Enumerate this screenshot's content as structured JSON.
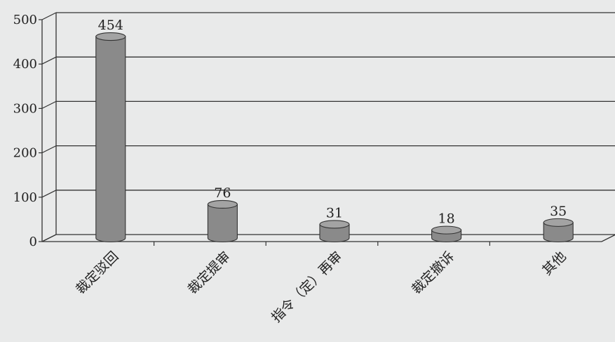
{
  "chart_data": {
    "type": "bar",
    "categories": [
      "裁定驳回",
      "裁定提审",
      "指令（定）再审",
      "裁定撤诉",
      "其他"
    ],
    "values": [
      454,
      76,
      31,
      18,
      35
    ],
    "yticks": [
      0,
      100,
      200,
      300,
      400,
      500
    ],
    "ylim": [
      0,
      500
    ],
    "grid": true,
    "title": "",
    "xlabel": "",
    "ylabel": "",
    "bar_color": "#8a8a8a",
    "bar_top_color": "#a3a3a3",
    "style": "3d-cylinder"
  }
}
